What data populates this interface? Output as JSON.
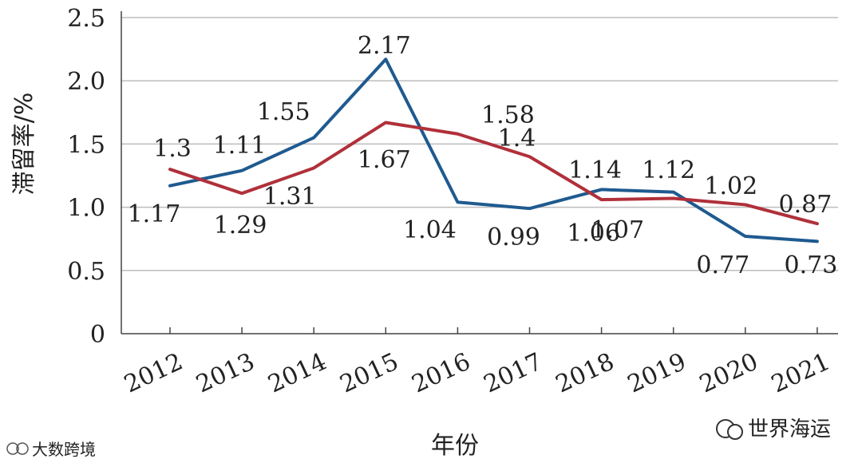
{
  "chart_data": {
    "type": "line",
    "xlabel": "年份",
    "ylabel": "滞留率/%",
    "categories": [
      "2012",
      "2013",
      "2014",
      "2015",
      "2016",
      "2017",
      "2018",
      "2019",
      "2020",
      "2021"
    ],
    "ylim": [
      0,
      2.5
    ],
    "yticks": [
      "0",
      "0.5",
      "1.0",
      "1.5",
      "2.0",
      "2.5"
    ],
    "grid": "horizontal",
    "series": [
      {
        "color": "#1f5a8f",
        "values": [
          1.17,
          1.29,
          1.55,
          2.17,
          1.04,
          0.99,
          1.14,
          1.12,
          0.77,
          0.73
        ],
        "labels": [
          "1.17",
          "1.29",
          "1.55",
          "2.17",
          "1.04",
          "0.99",
          "1.14",
          "1.12",
          "0.77",
          "0.73"
        ]
      },
      {
        "color": "#b0303a",
        "values": [
          1.3,
          1.11,
          1.31,
          1.67,
          1.58,
          1.4,
          1.06,
          1.07,
          1.02,
          0.87
        ],
        "labels": [
          "1.3",
          "1.11",
          "1.31",
          "1.67",
          "1.58",
          "1.4",
          "1.06",
          "1.07",
          "1.02",
          "0.87"
        ]
      }
    ]
  },
  "watermark_left": "大数跨境",
  "watermark_right": "世界海运"
}
